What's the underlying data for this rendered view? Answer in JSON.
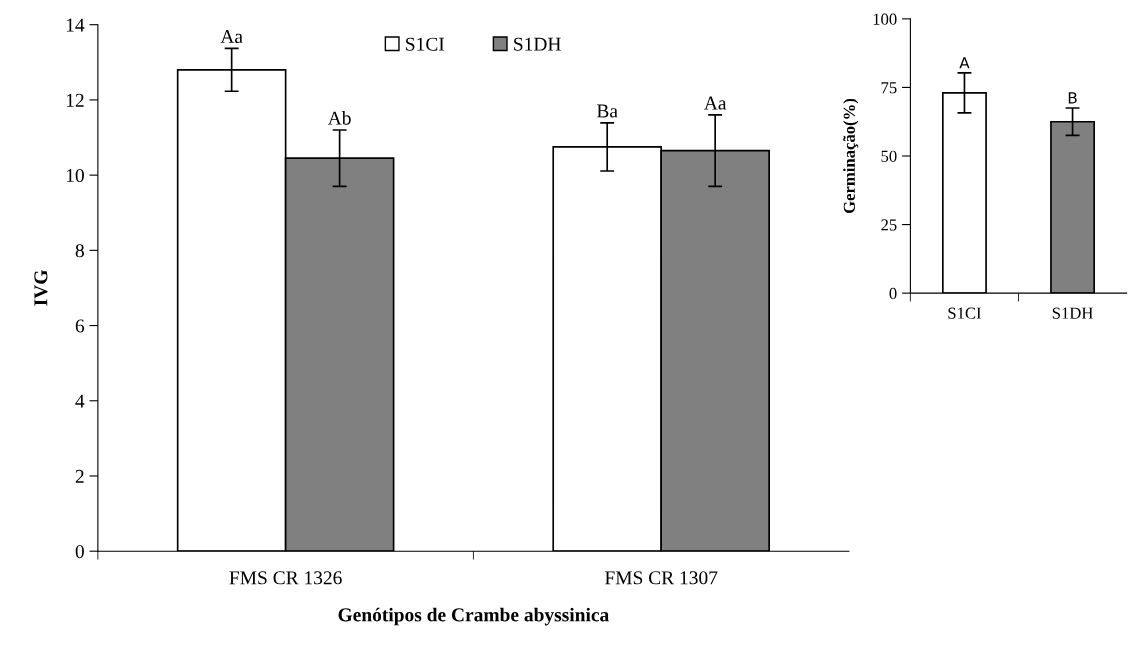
{
  "chart_data": [
    {
      "type": "bar",
      "xlabel": "Genótipos de Crambe abyssinica",
      "ylabel": "IVG",
      "categories": [
        "FMS CR 1326",
        "FMS CR 1307"
      ],
      "series": [
        {
          "name": "S1CI",
          "color": "#ffffff",
          "values": [
            12.8,
            10.75
          ],
          "errors": [
            0.57,
            0.64
          ]
        },
        {
          "name": "S1DH",
          "color": "#808080",
          "values": [
            10.45,
            10.65
          ],
          "errors": [
            0.75,
            0.95
          ]
        }
      ],
      "ylim": [
        0,
        14
      ],
      "yticks": [
        0,
        2,
        4,
        6,
        8,
        10,
        12,
        14
      ],
      "legend": "top",
      "grid": false,
      "annotations": [
        "Aa",
        "Ab",
        "Ba",
        "Aa"
      ]
    },
    {
      "type": "bar",
      "ylabel": "Germinação(%)",
      "categories": [
        "S1CI",
        "S1DH"
      ],
      "values": [
        73,
        62.5
      ],
      "colors": [
        "#ffffff",
        "#808080"
      ],
      "errors": [
        7.3,
        5
      ],
      "ylim": [
        0,
        100
      ],
      "yticks": [
        0,
        25,
        50,
        75,
        100
      ],
      "grid": false,
      "annotations": [
        "A",
        "B"
      ]
    }
  ]
}
